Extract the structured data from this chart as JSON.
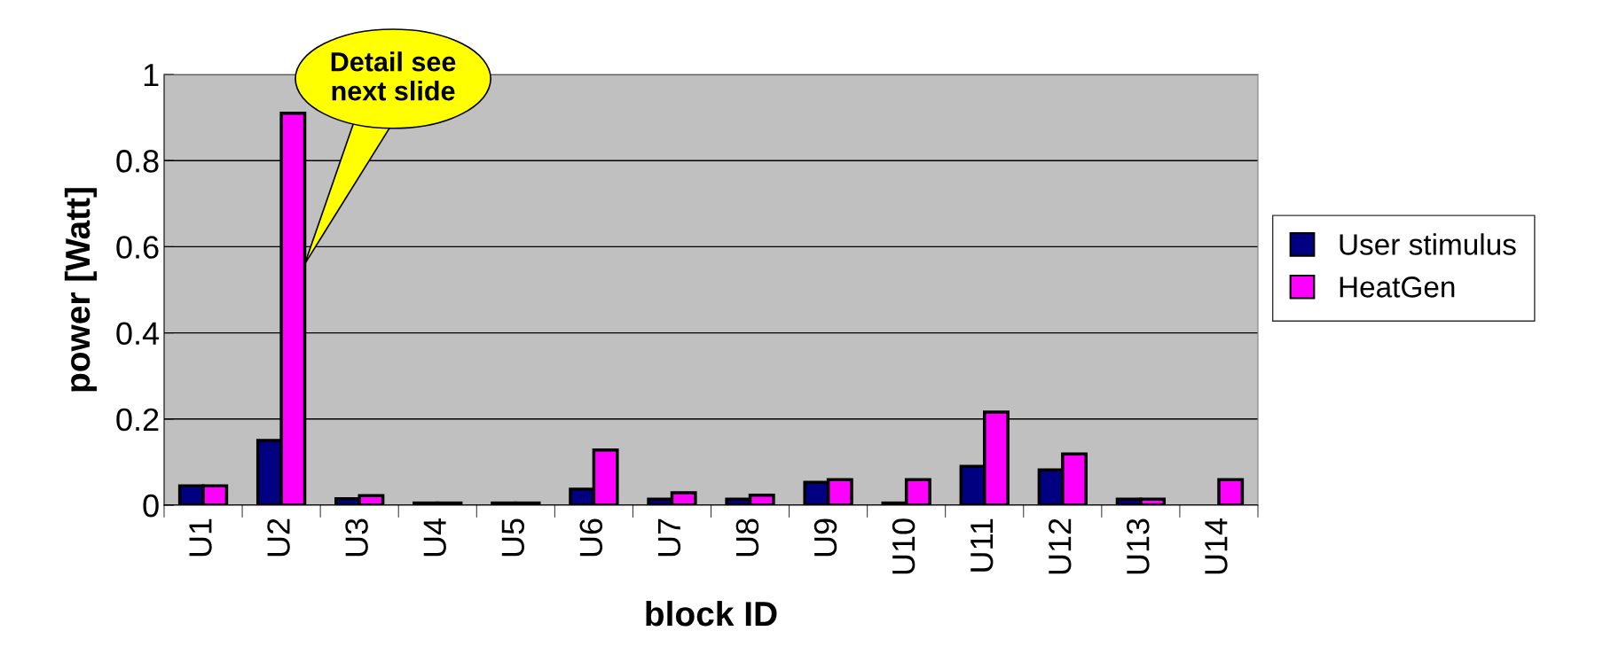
{
  "chart_data": {
    "type": "bar",
    "xlabel": "block ID",
    "ylabel": "power [Watt]",
    "categories": [
      "U1",
      "U2",
      "U3",
      "U4",
      "U5",
      "U6",
      "U7",
      "U8",
      "U9",
      "U10",
      "U11",
      "U12",
      "U13",
      "U14"
    ],
    "series": [
      {
        "name": "User stimulus",
        "color": "#000080",
        "values": [
          0.045,
          0.15,
          0.015,
          0.005,
          0.005,
          0.037,
          0.014,
          0.014,
          0.053,
          0.005,
          0.09,
          0.082,
          0.014,
          null
        ]
      },
      {
        "name": "HeatGen",
        "color": "#ff00ff",
        "values": [
          0.045,
          0.91,
          0.022,
          0.005,
          0.005,
          0.128,
          0.029,
          0.023,
          0.059,
          0.059,
          0.216,
          0.119,
          0.014,
          0.059
        ]
      }
    ],
    "ylim": [
      0,
      1
    ],
    "yticks": [
      0,
      0.2,
      0.4,
      0.6,
      0.8,
      1
    ],
    "grid": "y",
    "legend": "right",
    "annotations": [
      "Detail see\nnext slide"
    ]
  }
}
